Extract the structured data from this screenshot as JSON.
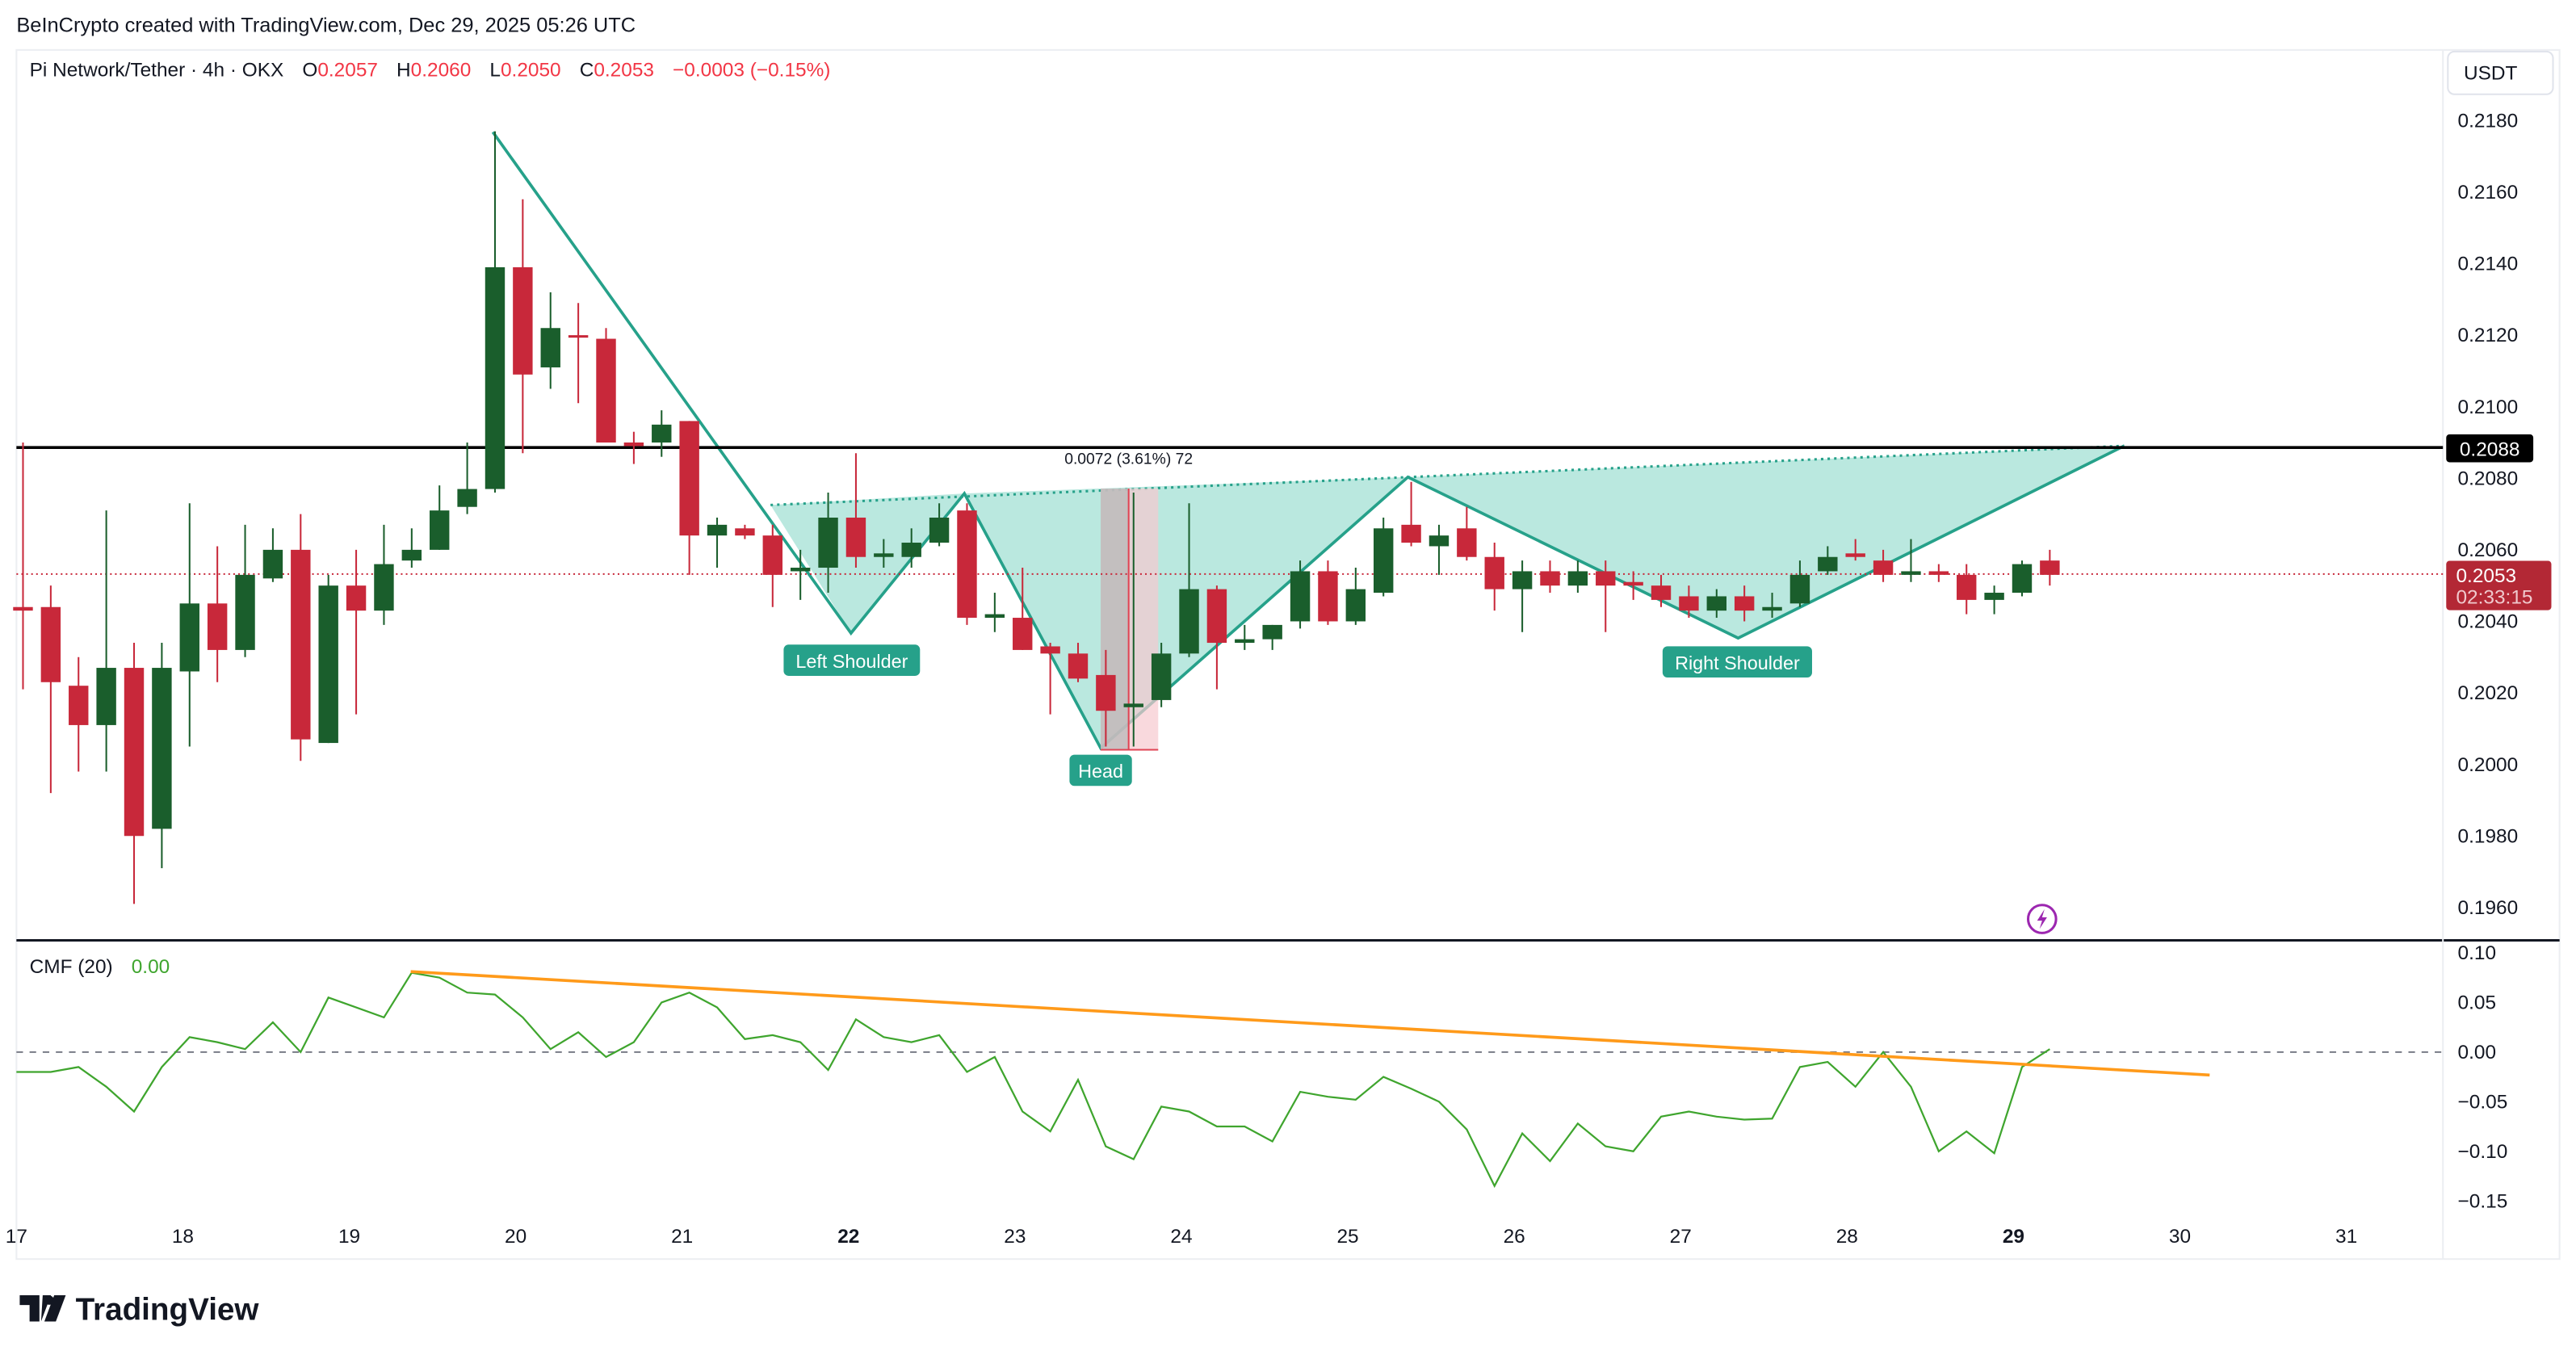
{
  "header": {
    "credit": "BeInCrypto created with TradingView.com, Dec 29, 2025 05:26 UTC",
    "symbol": "Pi Network/Tether · 4h · OKX",
    "o_label": "O",
    "o": "0.2057",
    "h_label": "H",
    "h": "0.2060",
    "l_label": "L",
    "l": "0.2050",
    "c_label": "C",
    "c": "0.2053",
    "change": "−0.0003 (−0.15%)"
  },
  "currency_button": "USDT",
  "colors": {
    "up": "#1a5e2c",
    "down": "#c8283a",
    "pattern": "#26a18a",
    "pattern_fill": "#b2e5dc",
    "cmf": "#3fa52e",
    "trend": "#ff9a1a",
    "resistance": "#000000"
  },
  "price_axis": {
    "ticks": [
      "0.2180",
      "0.2160",
      "0.2140",
      "0.2120",
      "0.2100",
      "0.2080",
      "0.2060",
      "0.2040",
      "0.2020",
      "0.2000",
      "0.1980",
      "0.1960"
    ],
    "resistance_label": "0.2088",
    "last_price": "0.2053",
    "countdown": "02:33:15"
  },
  "cmf_axis": {
    "ticks": [
      "0.10",
      "0.05",
      "0.00",
      "−0.05",
      "−0.10",
      "−0.15"
    ]
  },
  "time_axis": {
    "ticks": [
      "17",
      "18",
      "19",
      "20",
      "21",
      "22",
      "23",
      "24",
      "25",
      "26",
      "27",
      "28",
      "29",
      "30",
      "31"
    ],
    "bold": [
      "22",
      "29"
    ]
  },
  "annotations": {
    "left_shoulder": "Left Shoulder",
    "head": "Head",
    "right_shoulder": "Right Shoulder",
    "measure": "0.0072 (3.61%) 72"
  },
  "cmf_panel": {
    "label": "CMF (20)",
    "value": "0.00"
  },
  "logo": "TradingView",
  "chart_data": [
    {
      "type": "candlestick",
      "title": "Pi Network/Tether · 4h · OKX",
      "ylim": [
        0.195,
        0.219
      ],
      "resistance": 0.2088,
      "last": 0.2053,
      "ohlc": [
        [
          0.2044,
          0.209,
          0.2021,
          0.2043
        ],
        [
          0.2044,
          0.205,
          0.1992,
          0.2023
        ],
        [
          0.2022,
          0.203,
          0.1998,
          0.2011
        ],
        [
          0.2011,
          0.2071,
          0.1998,
          0.2027
        ],
        [
          0.2027,
          0.2034,
          0.1961,
          0.198
        ],
        [
          0.1982,
          0.2034,
          0.1971,
          0.2027
        ],
        [
          0.2026,
          0.2073,
          0.2005,
          0.2045
        ],
        [
          0.2045,
          0.2061,
          0.2023,
          0.2032
        ],
        [
          0.2032,
          0.2067,
          0.203,
          0.2053
        ],
        [
          0.2052,
          0.2066,
          0.2051,
          0.206
        ],
        [
          0.206,
          0.207,
          0.2001,
          0.2007
        ],
        [
          0.2006,
          0.2053,
          0.2006,
          0.205
        ],
        [
          0.205,
          0.206,
          0.2014,
          0.2043
        ],
        [
          0.2043,
          0.2067,
          0.2039,
          0.2056
        ],
        [
          0.2057,
          0.2066,
          0.2055,
          0.206
        ],
        [
          0.206,
          0.2078,
          0.206,
          0.2071
        ],
        [
          0.2072,
          0.209,
          0.207,
          0.2077
        ],
        [
          0.2077,
          0.2177,
          0.2076,
          0.2139
        ],
        [
          0.2139,
          0.2158,
          0.2087,
          0.2109
        ],
        [
          0.2111,
          0.2132,
          0.2105,
          0.2122
        ],
        [
          0.212,
          0.2129,
          0.2101,
          0.212
        ],
        [
          0.2119,
          0.2122,
          0.209,
          0.209
        ],
        [
          0.209,
          0.2093,
          0.2084,
          0.2089
        ],
        [
          0.209,
          0.2099,
          0.2086,
          0.2095
        ],
        [
          0.2096,
          0.2096,
          0.2053,
          0.2064
        ],
        [
          0.2064,
          0.2069,
          0.2055,
          0.2067
        ],
        [
          0.2066,
          0.2067,
          0.2063,
          0.2064
        ],
        [
          0.2064,
          0.2067,
          0.2044,
          0.2053
        ],
        [
          0.2054,
          0.206,
          0.2046,
          0.2055
        ],
        [
          0.2055,
          0.2076,
          0.2048,
          0.2069
        ],
        [
          0.2069,
          0.2087,
          0.2055,
          0.2058
        ],
        [
          0.2058,
          0.2063,
          0.2055,
          0.2059
        ],
        [
          0.2058,
          0.2066,
          0.2055,
          0.2062
        ],
        [
          0.2062,
          0.2073,
          0.2061,
          0.2069
        ],
        [
          0.2071,
          0.2073,
          0.2039,
          0.2041
        ],
        [
          0.2041,
          0.2048,
          0.2037,
          0.2042
        ],
        [
          0.2041,
          0.2055,
          0.2032,
          0.2032
        ],
        [
          0.2033,
          0.2034,
          0.2014,
          0.2031
        ],
        [
          0.2031,
          0.2034,
          0.2023,
          0.2024
        ],
        [
          0.2025,
          0.2032,
          0.2005,
          0.2015
        ],
        [
          0.2016,
          0.2076,
          0.2005,
          0.2017
        ],
        [
          0.2018,
          0.2034,
          0.2016,
          0.2031
        ],
        [
          0.2031,
          0.2073,
          0.203,
          0.2049
        ],
        [
          0.2049,
          0.205,
          0.2021,
          0.2034
        ],
        [
          0.2034,
          0.2039,
          0.2032,
          0.2035
        ],
        [
          0.2035,
          0.2039,
          0.2032,
          0.2039
        ],
        [
          0.204,
          0.2057,
          0.2038,
          0.2054
        ],
        [
          0.2054,
          0.2057,
          0.2039,
          0.204
        ],
        [
          0.204,
          0.2055,
          0.2039,
          0.2049
        ],
        [
          0.2048,
          0.2069,
          0.2047,
          0.2066
        ],
        [
          0.2067,
          0.2079,
          0.2061,
          0.2062
        ],
        [
          0.2061,
          0.2067,
          0.2053,
          0.2064
        ],
        [
          0.2066,
          0.2072,
          0.2057,
          0.2058
        ],
        [
          0.2058,
          0.2062,
          0.2043,
          0.2049
        ],
        [
          0.2049,
          0.2057,
          0.2037,
          0.2054
        ],
        [
          0.2054,
          0.2057,
          0.2048,
          0.205
        ],
        [
          0.205,
          0.2057,
          0.2048,
          0.2054
        ],
        [
          0.2054,
          0.2057,
          0.2037,
          0.205
        ],
        [
          0.2051,
          0.2054,
          0.2046,
          0.205
        ],
        [
          0.205,
          0.2053,
          0.2044,
          0.2046
        ],
        [
          0.2047,
          0.205,
          0.2041,
          0.2043
        ],
        [
          0.2043,
          0.2049,
          0.2041,
          0.2047
        ],
        [
          0.2047,
          0.205,
          0.204,
          0.2043
        ],
        [
          0.2043,
          0.2048,
          0.2041,
          0.2044
        ],
        [
          0.2045,
          0.2057,
          0.2044,
          0.2053
        ],
        [
          0.2054,
          0.2061,
          0.2053,
          0.2058
        ],
        [
          0.2059,
          0.2063,
          0.2057,
          0.2058
        ],
        [
          0.2057,
          0.206,
          0.2051,
          0.2053
        ],
        [
          0.2053,
          0.2063,
          0.2051,
          0.2054
        ],
        [
          0.2054,
          0.2056,
          0.2051,
          0.2053
        ],
        [
          0.2053,
          0.2056,
          0.2042,
          0.2046
        ],
        [
          0.2046,
          0.205,
          0.2042,
          0.2048
        ],
        [
          0.2048,
          0.2057,
          0.2047,
          0.2056
        ],
        [
          0.2057,
          0.206,
          0.205,
          0.2053
        ]
      ]
    },
    {
      "type": "line",
      "title": "CMF (20)",
      "ylim": [
        -0.16,
        0.11
      ],
      "values": [
        -0.02,
        -0.02,
        -0.015,
        -0.035,
        -0.06,
        -0.015,
        0.015,
        0.01,
        0.003,
        0.03,
        0.0,
        0.055,
        0.045,
        0.035,
        0.08,
        0.075,
        0.06,
        0.058,
        0.035,
        0.003,
        0.02,
        -0.005,
        0.01,
        0.05,
        0.06,
        0.045,
        0.013,
        0.017,
        0.01,
        -0.018,
        0.033,
        0.015,
        0.01,
        0.017,
        -0.02,
        -0.005,
        -0.06,
        -0.08,
        -0.028,
        -0.095,
        -0.108,
        -0.055,
        -0.06,
        -0.075,
        -0.075,
        -0.09,
        -0.04,
        -0.045,
        -0.048,
        -0.025,
        -0.037,
        -0.05,
        -0.078,
        -0.135,
        -0.082,
        -0.11,
        -0.072,
        -0.095,
        -0.1,
        -0.065,
        -0.06,
        -0.065,
        -0.068,
        -0.067,
        -0.015,
        -0.01,
        -0.035,
        0.0,
        -0.035,
        -0.1,
        -0.08,
        -0.102,
        -0.015,
        0.003
      ]
    }
  ]
}
